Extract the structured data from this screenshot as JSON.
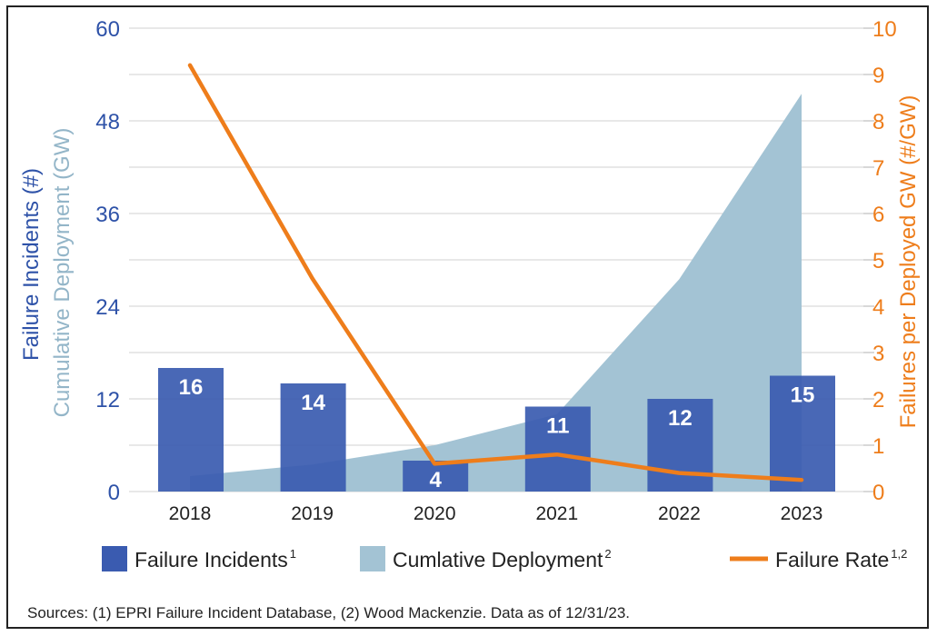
{
  "chart_data": {
    "type": "bar",
    "categories": [
      "2018",
      "2019",
      "2020",
      "2021",
      "2022",
      "2023"
    ],
    "left_axis": {
      "label_line1": "Failure Incidents (#)",
      "label_line2": "Cumulative Deployment (GW)",
      "range": [
        0,
        60
      ],
      "ticks": [
        "0",
        "12",
        "24",
        "36",
        "48",
        "60"
      ]
    },
    "right_axis": {
      "label": "Failures per Deployed GW (#/GW)",
      "range": [
        0,
        10
      ],
      "ticks": [
        "0",
        "1",
        "2",
        "3",
        "4",
        "5",
        "6",
        "7",
        "8",
        "9",
        "10"
      ]
    },
    "series": [
      {
        "name": "Failure Incidents",
        "kind": "bar",
        "axis": "left",
        "color": "#3a5bb0",
        "values": [
          16,
          14,
          4,
          11,
          12,
          15
        ]
      },
      {
        "name": "Cumlative Deployment",
        "kind": "area",
        "axis": "left",
        "color": "#a3c3d4",
        "values": [
          2,
          3.5,
          6,
          10,
          27.5,
          51.5
        ]
      },
      {
        "name": "Failure Rate",
        "kind": "line",
        "axis": "right",
        "color": "#ee7d1b",
        "values": [
          9.2,
          4.6,
          0.6,
          0.8,
          0.4,
          0.25
        ]
      }
    ],
    "legend": [
      {
        "label": "Failure Incidents",
        "sup": "1",
        "kind": "bar"
      },
      {
        "label": "Cumlative Deployment",
        "sup": "2",
        "kind": "area"
      },
      {
        "label": "Failure Rate",
        "sup": "1,2",
        "kind": "line"
      }
    ],
    "legend_position": "bottom",
    "grid": true,
    "source": "Sources: (1) EPRI Failure Incident Database, (2) Wood Mackenzie. Data as of 12/31/23."
  }
}
